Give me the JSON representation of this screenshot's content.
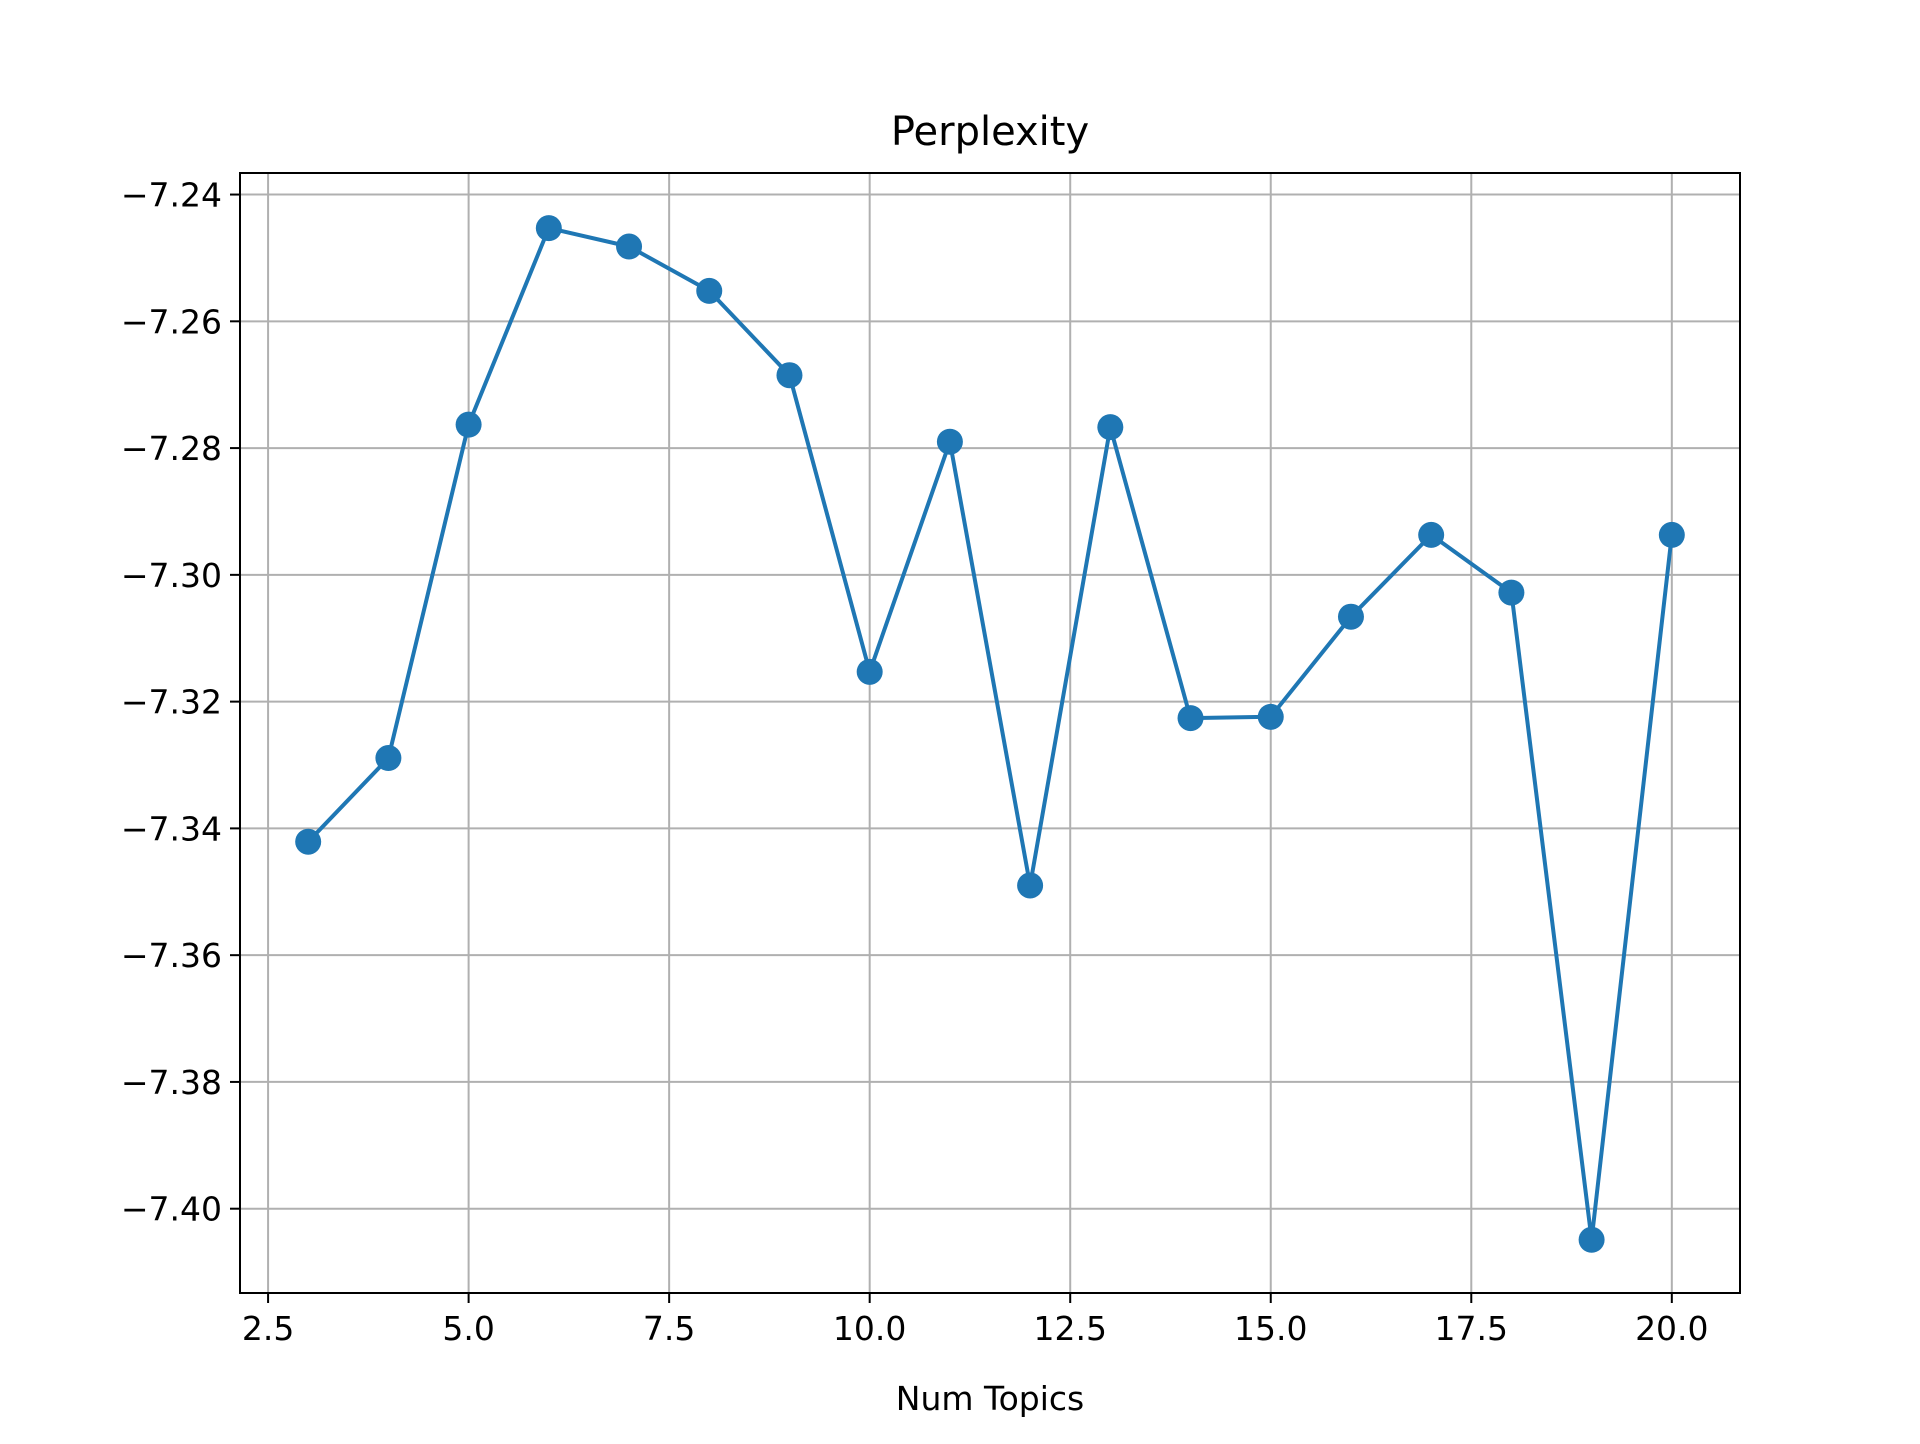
{
  "chart_data": {
    "type": "line",
    "title": "Perplexity",
    "xlabel": "Num Topics",
    "ylabel": "",
    "xlim": [
      2.15,
      20.85
    ],
    "ylim": [
      -7.4133,
      -7.2366
    ],
    "xticks": [
      2.5,
      5.0,
      7.5,
      10.0,
      12.5,
      15.0,
      17.5,
      20.0
    ],
    "xtick_labels": [
      "2.5",
      "5.0",
      "7.5",
      "10.0",
      "12.5",
      "15.0",
      "17.5",
      "20.0"
    ],
    "yticks": [
      -7.24,
      -7.26,
      -7.28,
      -7.3,
      -7.32,
      -7.34,
      -7.36,
      -7.38,
      -7.4
    ],
    "ytick_labels": [
      "−7.24",
      "−7.26",
      "−7.28",
      "−7.30",
      "−7.32",
      "−7.34",
      "−7.36",
      "−7.38",
      "−7.40"
    ],
    "grid": true,
    "legend": "none",
    "series": [
      {
        "x": [
          3,
          4,
          5,
          6,
          7,
          8,
          9,
          10,
          11,
          12,
          13,
          14,
          15,
          16,
          17,
          18,
          19,
          20
        ],
        "y": [
          -7.3421,
          -7.3289,
          -7.2763,
          -7.2453,
          -7.2482,
          -7.2552,
          -7.2685,
          -7.3153,
          -7.279,
          -7.349,
          -7.2767,
          -7.3226,
          -7.3224,
          -7.3066,
          -7.2937,
          -7.3028,
          -7.4049,
          -7.2937
        ],
        "color": "#1f77b4",
        "marker": "circle"
      }
    ]
  },
  "colors": {
    "line": "#1f77b4",
    "grid": "#b0b0b0",
    "axes": "#000000"
  }
}
